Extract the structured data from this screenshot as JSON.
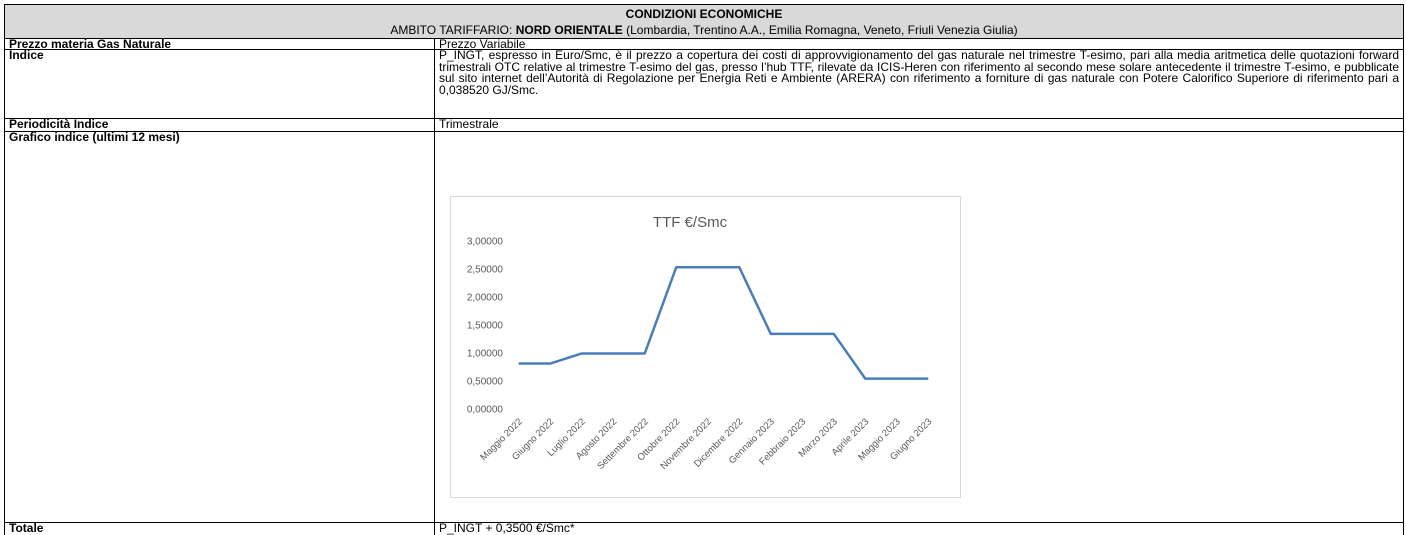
{
  "header": {
    "title": "CONDIZIONI ECONOMICHE",
    "subtitle": {
      "prefix": "AMBITO TARIFFARIO:",
      "bold": "NORD ORIENTALE",
      "suffix": "(Lombardia, Trentino A.A., Emilia Romagna, Veneto, Friuli Venezia Giulia)"
    }
  },
  "rows": [
    {
      "label": "Prezzo materia Gas Naturale",
      "value": "Prezzo Variabile"
    },
    {
      "label": "Indice",
      "value": "P_INGT, espresso in Euro/Smc, è il prezzo a copertura dei costi di approvvigionamento del gas naturale nel trimestre T-esimo, pari alla media aritmetica delle quotazioni forward trimestrali OTC relative al trimestre T-esimo del gas, presso l’hub TTF, rilevate da ICIS-Heren con riferimento al secondo mese solare antecedente il trimestre T-esimo, e pubblicate sul sito internet dell’Autorità di Regolazione per Energia Reti e Ambiente (ARERA) con riferimento a forniture di gas naturale con Potere Calorifico Superiore di riferimento pari a 0,038520 GJ/Smc."
    },
    {
      "label": "Periodicità Indice",
      "value": "Trimestrale"
    },
    {
      "label": "Grafico indice (ultimi 12 mesi)"
    },
    {
      "label": "Totale",
      "value": "P_INGT + 0,3500 €/Smc*"
    }
  ],
  "chart_data": {
    "type": "line",
    "title": "TTF €/Smc",
    "categories": [
      "Maggio 2022",
      "Giugno 2022",
      "Luglio 2022",
      "Agosto 2022",
      "Settembre 2022",
      "Ottobre 2022",
      "Novembre 2022",
      "Dicembre 2022",
      "Gennaio 2023",
      "Febbraio 2023",
      "Marzo 2023",
      "Aprile 2023",
      "Maggio 2023",
      "Giugno 2023"
    ],
    "values": [
      0.83,
      0.83,
      1.01,
      1.01,
      1.01,
      2.55,
      2.55,
      2.55,
      1.36,
      1.36,
      1.36,
      0.56,
      0.56,
      0.56
    ],
    "color": "#4a7ebb",
    "ylim": [
      0,
      3
    ],
    "yticks": [
      {
        "value": 0,
        "label": "0,00000"
      },
      {
        "value": 0.5,
        "label": "0,50000"
      },
      {
        "value": 1,
        "label": "1,00000"
      },
      {
        "value": 1.5,
        "label": "1,50000"
      },
      {
        "value": 2,
        "label": "2,00000"
      },
      {
        "value": 2.5,
        "label": "2,50000"
      },
      {
        "value": 3,
        "label": "3,00000"
      }
    ],
    "grid": false
  }
}
